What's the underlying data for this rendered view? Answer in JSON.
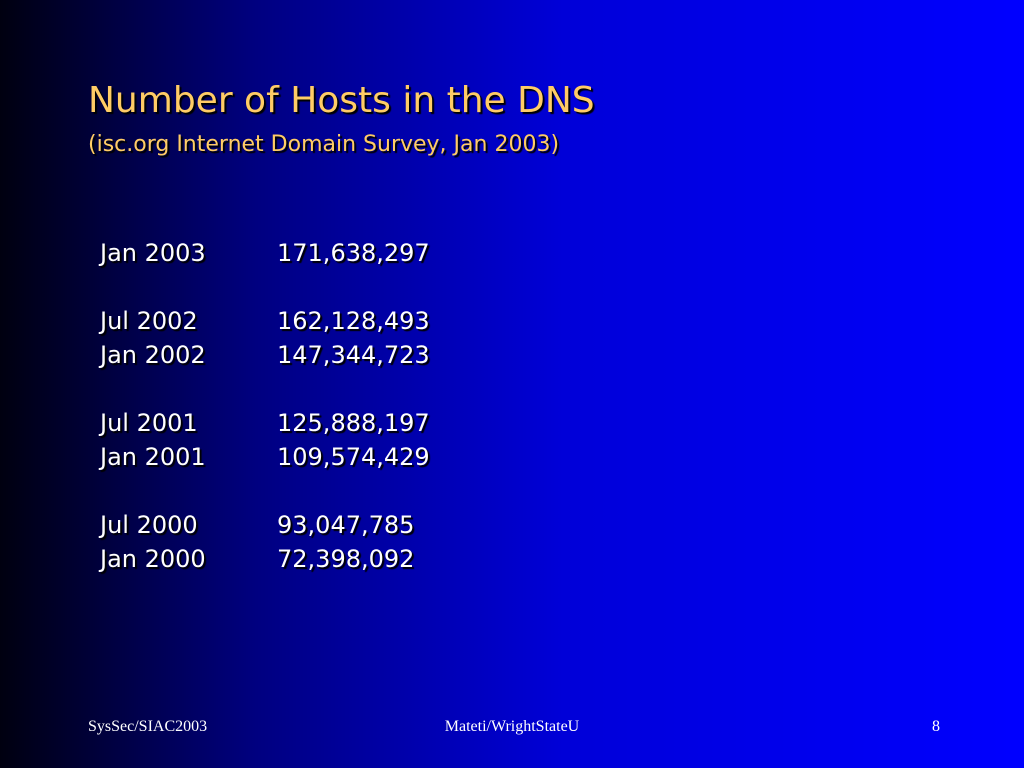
{
  "header": {
    "title": "Number of Hosts in the DNS",
    "subtitle": "(isc.org Internet Domain Survey, Jan 2003)"
  },
  "table": {
    "groups": [
      [
        [
          "Jan 2003",
          "171,638,297"
        ]
      ],
      [
        [
          "Jul 2002",
          "162,128,493"
        ],
        [
          "Jan 2002",
          "147,344,723"
        ]
      ],
      [
        [
          "Jul 2001",
          "125,888,197"
        ],
        [
          "Jan 2001",
          "109,574,429"
        ]
      ],
      [
        [
          "Jul 2000",
          "93,047,785"
        ],
        [
          "Jan 2000",
          "72,398,092"
        ]
      ]
    ]
  },
  "footer": {
    "left": "SysSec/SIAC2003",
    "center": "Mateti/WrightStateU",
    "page": "8"
  }
}
